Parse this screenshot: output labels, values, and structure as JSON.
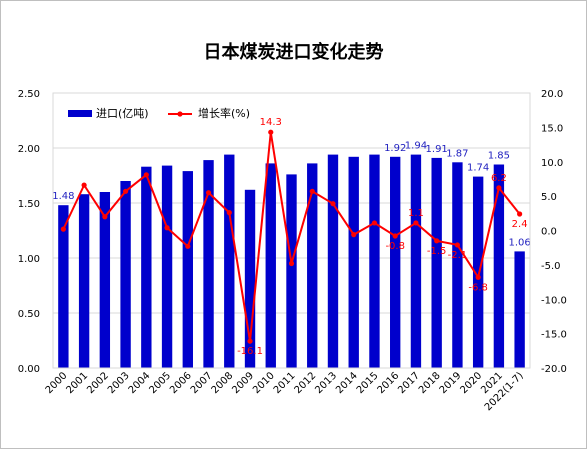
{
  "chart_data": {
    "type": "bar+line",
    "title": "日本煤炭进口变化走势",
    "categories": [
      "2000",
      "2001",
      "2002",
      "2003",
      "2004",
      "2005",
      "2006",
      "2007",
      "2008",
      "2009",
      "2010",
      "2011",
      "2012",
      "2013",
      "2014",
      "2015",
      "2016",
      "2017",
      "2018",
      "2019",
      "2020",
      "2021",
      "2022(1-7)"
    ],
    "series": [
      {
        "name": "进口(亿吨)",
        "type": "bar",
        "axis": "left",
        "color": "#0000cc",
        "values": [
          1.48,
          1.58,
          1.6,
          1.7,
          1.83,
          1.84,
          1.79,
          1.89,
          1.94,
          1.62,
          1.86,
          1.76,
          1.86,
          1.94,
          1.92,
          1.94,
          1.92,
          1.94,
          1.91,
          1.87,
          1.74,
          1.85,
          1.06
        ]
      },
      {
        "name": "增长率(%)",
        "type": "line",
        "axis": "right",
        "color": "#ff0000",
        "values": [
          0.2,
          6.6,
          2.0,
          5.7,
          8.1,
          0.4,
          -2.3,
          5.5,
          2.6,
          -16.1,
          14.3,
          -4.8,
          5.7,
          3.9,
          -0.6,
          1.1,
          -0.8,
          1.1,
          -1.5,
          -2.1,
          -6.8,
          6.2,
          2.4
        ]
      }
    ],
    "bar_labels": [
      {
        "index": 0,
        "text": "1.48"
      },
      {
        "index": 16,
        "text": "1.92"
      },
      {
        "index": 17,
        "text": "1.94"
      },
      {
        "index": 18,
        "text": "1.91"
      },
      {
        "index": 19,
        "text": "1.87"
      },
      {
        "index": 20,
        "text": "1.74"
      },
      {
        "index": 21,
        "text": "1.85"
      },
      {
        "index": 22,
        "text": "1.06"
      }
    ],
    "line_labels": [
      {
        "index": 9,
        "text": "-16.1"
      },
      {
        "index": 10,
        "text": "14.3"
      },
      {
        "index": 16,
        "text": "-0.8"
      },
      {
        "index": 17,
        "text": "1.1"
      },
      {
        "index": 18,
        "text": "-1.5"
      },
      {
        "index": 19,
        "text": "-2.1"
      },
      {
        "index": 20,
        "text": "-6.8"
      },
      {
        "index": 21,
        "text": "6.2"
      },
      {
        "index": 22,
        "text": "2.4"
      }
    ],
    "y_left": {
      "min": 0,
      "max": 2.5,
      "step": 0.5,
      "tick_labels": [
        "0.00",
        "0.50",
        "1.00",
        "1.50",
        "2.00",
        "2.50"
      ]
    },
    "y_right": {
      "min": -20,
      "max": 20,
      "step": 5,
      "tick_labels": [
        "-20.0",
        "-15.0",
        "-10.0",
        "-5.0",
        "0.0",
        "5.0",
        "10.0",
        "15.0",
        "20.0"
      ]
    },
    "grid": true,
    "legend_position": "top-left"
  }
}
